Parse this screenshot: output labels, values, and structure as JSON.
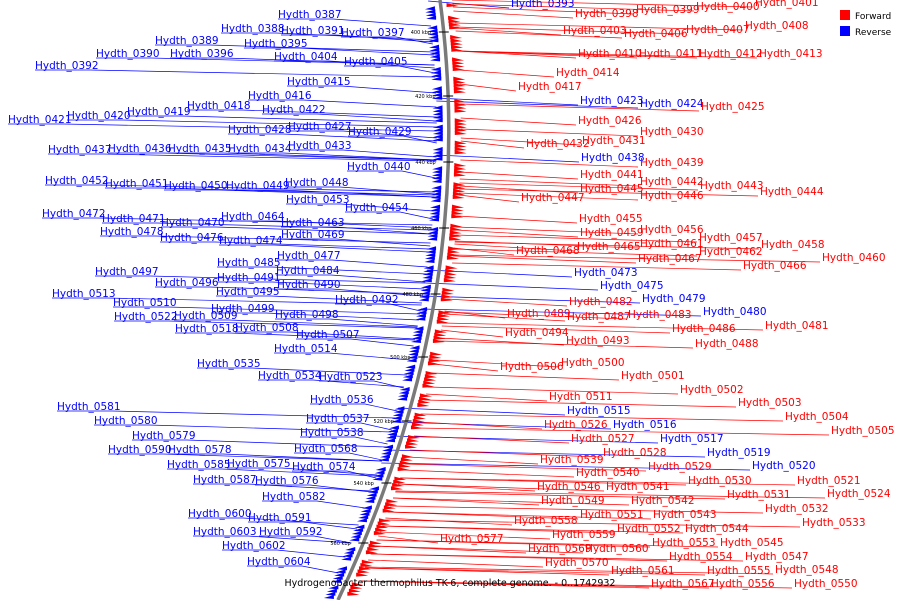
{
  "legend": [
    {
      "label": "Forward",
      "color": "#ff0000"
    },
    {
      "label": "Reverse",
      "color": "#0000ff"
    }
  ],
  "caption": "Hydrogenobacter thermophilus TK-6, complete genome. - 0..1742932",
  "ticks": [
    "400 kbp",
    "420 kbp",
    "440 kbp",
    "460 kbp",
    "480 kbp",
    "500 kbp",
    "520 kbp",
    "540 kbp",
    "560 kbp"
  ],
  "reverse_genes": [
    "Hydth_0387",
    "Hydth_0388",
    "Hydth_0389",
    "Hydth_0390",
    "Hydth_0391",
    "Hydth_0392",
    "Hydth_0395",
    "Hydth_0396",
    "Hydth_0397",
    "Hydth_0404",
    "Hydth_0405",
    "Hydth_0415",
    "Hydth_0416",
    "Hydth_0418",
    "Hydth_0419",
    "Hydth_0420",
    "Hydth_0421",
    "Hydth_0422",
    "Hydth_0427",
    "Hydth_0428",
    "Hydth_0429",
    "Hydth_0433",
    "Hydth_0434",
    "Hydth_0435",
    "Hydth_0436",
    "Hydth_0437",
    "Hydth_0440",
    "Hydth_0448",
    "Hydth_0449",
    "Hydth_0450",
    "Hydth_0451",
    "Hydth_0452",
    "Hydth_0453",
    "Hydth_0454",
    "Hydth_0463",
    "Hydth_0464",
    "Hydth_0469",
    "Hydth_0470",
    "Hydth_0471",
    "Hydth_0472",
    "Hydth_0474",
    "Hydth_0476",
    "Hydth_0477",
    "Hydth_0478",
    "Hydth_0484",
    "Hydth_0485",
    "Hydth_0490",
    "Hydth_0491",
    "Hydth_0492",
    "Hydth_0495",
    "Hydth_0496",
    "Hydth_0497",
    "Hydth_0498",
    "Hydth_0499",
    "Hydth_0507",
    "Hydth_0508",
    "Hydth_0509",
    "Hydth_0510",
    "Hydth_0513",
    "Hydth_0514",
    "Hydth_0518",
    "Hydth_0522",
    "Hydth_0523",
    "Hydth_0534",
    "Hydth_0535",
    "Hydth_0536",
    "Hydth_0537",
    "Hydth_0538",
    "Hydth_0568",
    "Hydth_0574",
    "Hydth_0575",
    "Hydth_0576",
    "Hydth_0578",
    "Hydth_0579",
    "Hydth_0580",
    "Hydth_0581",
    "Hydth_0582",
    "Hydth_0585",
    "Hydth_0587",
    "Hydth_0590",
    "Hydth_0591",
    "Hydth_0592",
    "Hydth_0600",
    "Hydth_0602",
    "Hydth_0603",
    "Hydth_0604",
    "Hydth_0393",
    "Hydth_0423",
    "Hydth_0424",
    "Hydth_0438",
    "Hydth_0473",
    "Hydth_0475",
    "Hydth_0479",
    "Hydth_0480",
    "Hydth_0515",
    "Hydth_0516",
    "Hydth_0517",
    "Hydth_0519",
    "Hydth_0520"
  ],
  "forward_genes": [
    "Hydth_0398",
    "Hydth_0399",
    "Hydth_0400",
    "Hydth_0401",
    "Hydth_0403",
    "Hydth_0406",
    "Hydth_0407",
    "Hydth_0408",
    "Hydth_0410",
    "Hydth_0411",
    "Hydth_0412",
    "Hydth_0413",
    "Hydth_0414",
    "Hydth_0417",
    "Hydth_0425",
    "Hydth_0426",
    "Hydth_0430",
    "Hydth_0431",
    "Hydth_0432",
    "Hydth_0439",
    "Hydth_0441",
    "Hydth_0442",
    "Hydth_0443",
    "Hydth_0444",
    "Hydth_0445",
    "Hydth_0446",
    "Hydth_0447",
    "Hydth_0455",
    "Hydth_0456",
    "Hydth_0457",
    "Hydth_0458",
    "Hydth_0459",
    "Hydth_0460",
    "Hydth_0461",
    "Hydth_0462",
    "Hydth_0465",
    "Hydth_0466",
    "Hydth_0467",
    "Hydth_0468",
    "Hydth_0481",
    "Hydth_0482",
    "Hydth_0483",
    "Hydth_0486",
    "Hydth_0487",
    "Hydth_0488",
    "Hydth_0489",
    "Hydth_0493",
    "Hydth_0494",
    "Hydth_0500",
    "Hydth_0501",
    "Hydth_0502",
    "Hydth_0503",
    "Hydth_0504",
    "Hydth_0505",
    "Hydth_0506",
    "Hydth_0511",
    "Hydth_0521",
    "Hydth_0524",
    "Hydth_0526",
    "Hydth_0527",
    "Hydth_0528",
    "Hydth_0529",
    "Hydth_0530",
    "Hydth_0531",
    "Hydth_0532",
    "Hydth_0533",
    "Hydth_0539",
    "Hydth_0540",
    "Hydth_0541",
    "Hydth_0542",
    "Hydth_0543",
    "Hydth_0544",
    "Hydth_0545",
    "Hydth_0546",
    "Hydth_0547",
    "Hydth_0548",
    "Hydth_0549",
    "Hydth_0550",
    "Hydth_0551",
    "Hydth_0552",
    "Hydth_0553",
    "Hydth_0554",
    "Hydth_0555",
    "Hydth_0556",
    "Hydth_0558",
    "Hydth_0559",
    "Hydth_0560",
    "Hydth_0561",
    "Hydth_0567",
    "Hydth_0569",
    "Hydth_0570",
    "Hydth_0577"
  ]
}
